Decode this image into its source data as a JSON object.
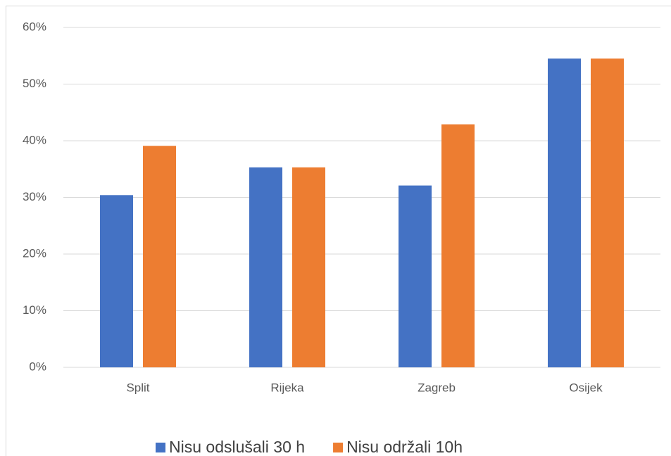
{
  "chart_data": {
    "type": "bar",
    "categories": [
      "Split",
      "Rijeka",
      "Zagreb",
      "Osijek"
    ],
    "series": [
      {
        "name": "Nisu odslušali 30 h",
        "color": "#4472c4",
        "values": [
          30.4,
          35.3,
          32.1,
          54.5
        ]
      },
      {
        "name": "Nisu održali 10h",
        "color": "#ed7d31",
        "values": [
          39.1,
          35.3,
          42.9,
          54.5
        ]
      }
    ],
    "ylim": [
      0,
      60
    ],
    "yticks": [
      {
        "value": 0,
        "label": "0%"
      },
      {
        "value": 10,
        "label": "10%"
      },
      {
        "value": 20,
        "label": "20%"
      },
      {
        "value": 30,
        "label": "30%"
      },
      {
        "value": 40,
        "label": "40%"
      },
      {
        "value": 50,
        "label": "50%"
      },
      {
        "value": 60,
        "label": "60%"
      }
    ],
    "grid": true,
    "legend": "bottom"
  }
}
